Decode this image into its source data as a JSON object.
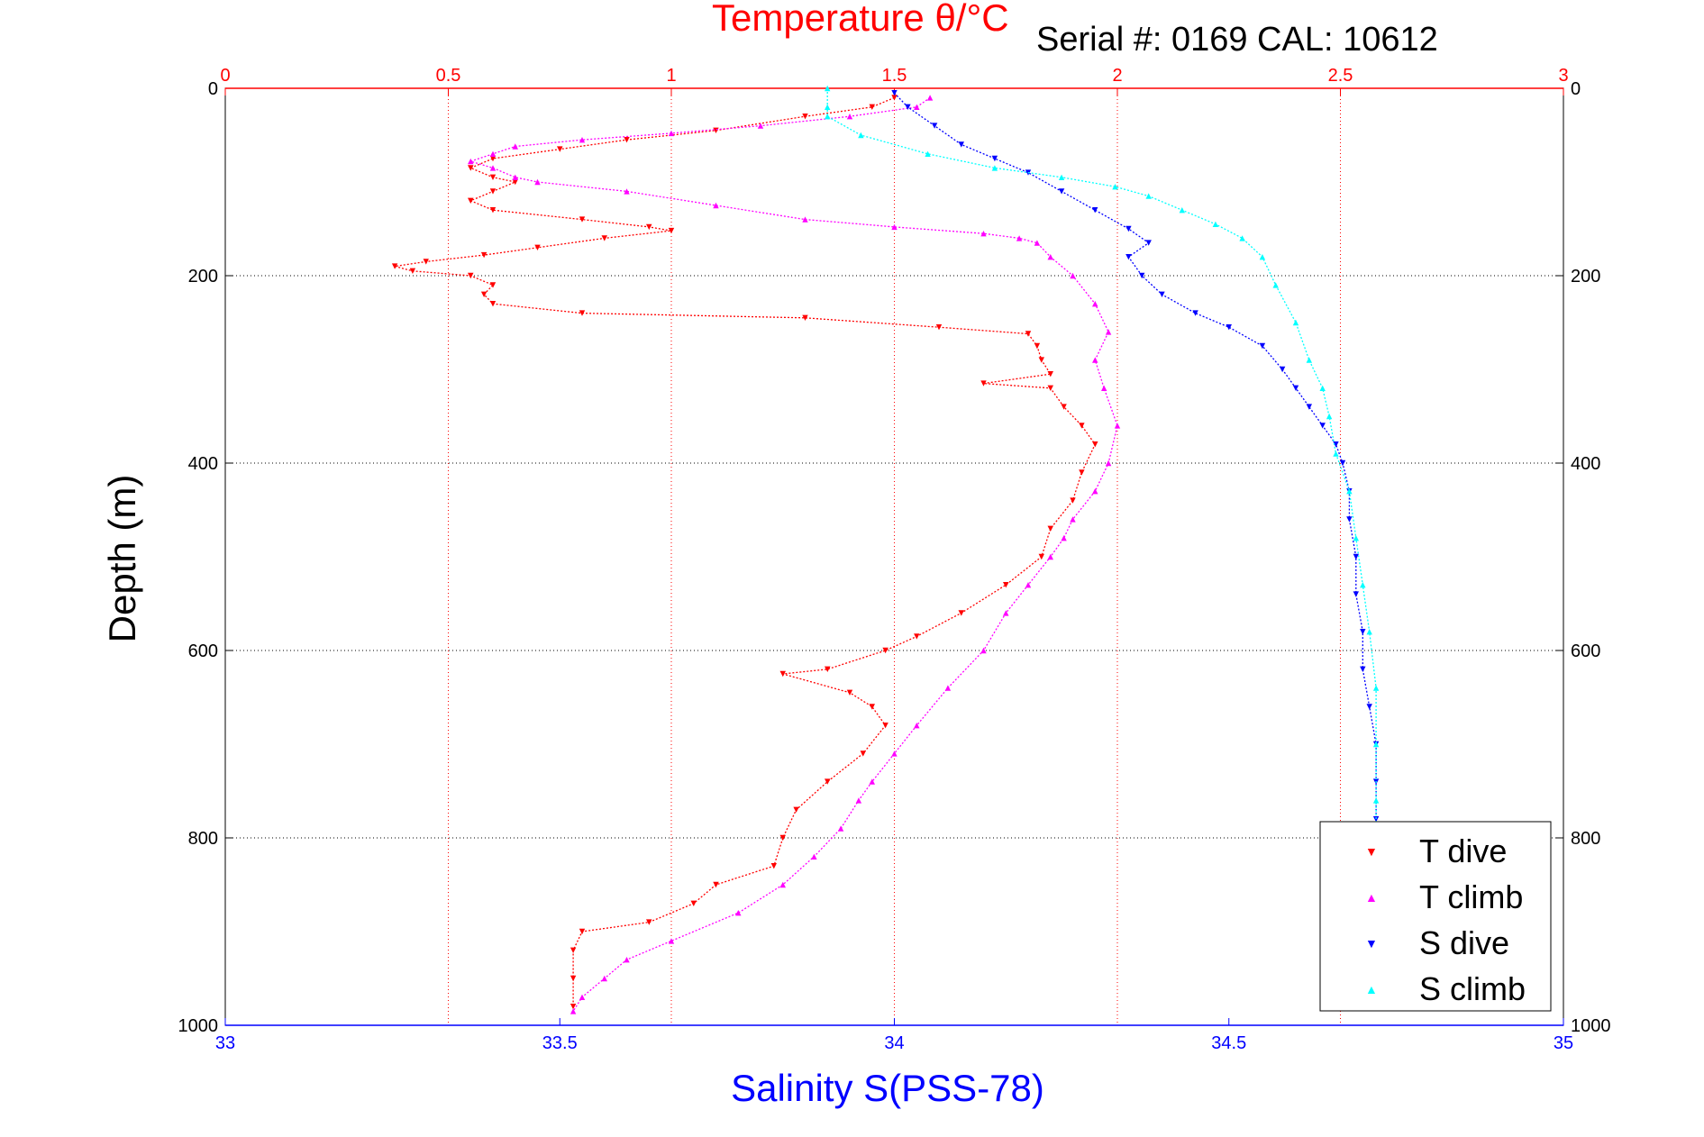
{
  "chart_data": {
    "type": "scatter",
    "title": "Temperature θ/°C",
    "subtitle": "Serial #: 0169 CAL: 10612",
    "ylabel": "Depth (m)",
    "xlabel_bottom": "Salinity S(PSS-78)",
    "xlabel_top": "Temperature θ/°C",
    "ylim": [
      0,
      1000
    ],
    "y_reversed": true,
    "xlim_top": [
      0,
      3
    ],
    "xlim_bottom": [
      33,
      35
    ],
    "yticks": [
      "0",
      "200",
      "400",
      "600",
      "800",
      "1000"
    ],
    "xticks_top": [
      "0",
      "0.5",
      "1",
      "1.5",
      "2",
      "2.5",
      "3"
    ],
    "xticks_bottom": [
      "33",
      "33.5",
      "34",
      "34.5",
      "35"
    ],
    "grid": true,
    "legend_position": "bottom-right",
    "colors": {
      "temperature_axis": "#ff0000",
      "salinity_axis": "#0000ff",
      "T dive": "#ff0000",
      "T climb": "#ff00ff",
      "S dive": "#0000ff",
      "S climb": "#00ffff"
    },
    "series": [
      {
        "name": "T dive",
        "axis": "temperature",
        "marker": "triangle-down",
        "points": [
          [
            1.5,
            10
          ],
          [
            1.45,
            20
          ],
          [
            1.3,
            30
          ],
          [
            1.1,
            45
          ],
          [
            0.9,
            55
          ],
          [
            0.75,
            65
          ],
          [
            0.6,
            75
          ],
          [
            0.55,
            85
          ],
          [
            0.6,
            95
          ],
          [
            0.65,
            100
          ],
          [
            0.6,
            110
          ],
          [
            0.55,
            120
          ],
          [
            0.6,
            130
          ],
          [
            0.8,
            140
          ],
          [
            0.95,
            148
          ],
          [
            1.0,
            152
          ],
          [
            0.85,
            160
          ],
          [
            0.7,
            170
          ],
          [
            0.58,
            178
          ],
          [
            0.45,
            185
          ],
          [
            0.38,
            190
          ],
          [
            0.42,
            195
          ],
          [
            0.55,
            200
          ],
          [
            0.6,
            210
          ],
          [
            0.58,
            220
          ],
          [
            0.6,
            230
          ],
          [
            0.8,
            240
          ],
          [
            1.3,
            245
          ],
          [
            1.6,
            255
          ],
          [
            1.8,
            262
          ],
          [
            1.82,
            275
          ],
          [
            1.83,
            290
          ],
          [
            1.85,
            305
          ],
          [
            1.7,
            315
          ],
          [
            1.85,
            320
          ],
          [
            1.88,
            340
          ],
          [
            1.92,
            360
          ],
          [
            1.95,
            380
          ],
          [
            1.92,
            410
          ],
          [
            1.9,
            440
          ],
          [
            1.85,
            470
          ],
          [
            1.83,
            500
          ],
          [
            1.75,
            530
          ],
          [
            1.65,
            560
          ],
          [
            1.55,
            585
          ],
          [
            1.48,
            600
          ],
          [
            1.35,
            620
          ],
          [
            1.25,
            625
          ],
          [
            1.4,
            645
          ],
          [
            1.45,
            660
          ],
          [
            1.48,
            680
          ],
          [
            1.43,
            710
          ],
          [
            1.35,
            740
          ],
          [
            1.28,
            770
          ],
          [
            1.25,
            800
          ],
          [
            1.23,
            830
          ],
          [
            1.1,
            850
          ],
          [
            1.05,
            870
          ],
          [
            0.95,
            890
          ],
          [
            0.8,
            900
          ],
          [
            0.78,
            920
          ],
          [
            0.78,
            950
          ],
          [
            0.78,
            980
          ]
        ]
      },
      {
        "name": "T climb",
        "axis": "temperature",
        "marker": "triangle-up",
        "points": [
          [
            1.58,
            10
          ],
          [
            1.55,
            20
          ],
          [
            1.4,
            30
          ],
          [
            1.2,
            40
          ],
          [
            1.0,
            48
          ],
          [
            0.8,
            55
          ],
          [
            0.65,
            62
          ],
          [
            0.6,
            70
          ],
          [
            0.55,
            78
          ],
          [
            0.6,
            85
          ],
          [
            0.65,
            95
          ],
          [
            0.7,
            100
          ],
          [
            0.9,
            110
          ],
          [
            1.1,
            125
          ],
          [
            1.3,
            140
          ],
          [
            1.5,
            148
          ],
          [
            1.7,
            155
          ],
          [
            1.78,
            160
          ],
          [
            1.82,
            165
          ],
          [
            1.85,
            180
          ],
          [
            1.9,
            200
          ],
          [
            1.95,
            230
          ],
          [
            1.98,
            260
          ],
          [
            1.95,
            290
          ],
          [
            1.97,
            320
          ],
          [
            2.0,
            360
          ],
          [
            1.98,
            400
          ],
          [
            1.95,
            430
          ],
          [
            1.9,
            460
          ],
          [
            1.88,
            480
          ],
          [
            1.85,
            500
          ],
          [
            1.8,
            530
          ],
          [
            1.75,
            560
          ],
          [
            1.7,
            600
          ],
          [
            1.62,
            640
          ],
          [
            1.55,
            680
          ],
          [
            1.5,
            710
          ],
          [
            1.45,
            740
          ],
          [
            1.42,
            760
          ],
          [
            1.38,
            790
          ],
          [
            1.32,
            820
          ],
          [
            1.25,
            850
          ],
          [
            1.15,
            880
          ],
          [
            1.0,
            910
          ],
          [
            0.9,
            930
          ],
          [
            0.85,
            950
          ],
          [
            0.8,
            970
          ],
          [
            0.78,
            985
          ]
        ]
      },
      {
        "name": "S dive",
        "axis": "salinity",
        "marker": "triangle-down",
        "points": [
          [
            34.0,
            5
          ],
          [
            34.02,
            20
          ],
          [
            34.06,
            40
          ],
          [
            34.1,
            60
          ],
          [
            34.15,
            75
          ],
          [
            34.2,
            90
          ],
          [
            34.25,
            110
          ],
          [
            34.3,
            130
          ],
          [
            34.35,
            150
          ],
          [
            34.38,
            165
          ],
          [
            34.35,
            180
          ],
          [
            34.37,
            200
          ],
          [
            34.4,
            220
          ],
          [
            34.45,
            240
          ],
          [
            34.5,
            255
          ],
          [
            34.55,
            275
          ],
          [
            34.58,
            300
          ],
          [
            34.6,
            320
          ],
          [
            34.62,
            340
          ],
          [
            34.64,
            360
          ],
          [
            34.66,
            380
          ],
          [
            34.67,
            400
          ],
          [
            34.68,
            430
          ],
          [
            34.68,
            460
          ],
          [
            34.69,
            500
          ],
          [
            34.69,
            540
          ],
          [
            34.7,
            580
          ],
          [
            34.7,
            620
          ],
          [
            34.71,
            660
          ],
          [
            34.72,
            700
          ],
          [
            34.72,
            740
          ],
          [
            34.72,
            780
          ]
        ]
      },
      {
        "name": "S climb",
        "axis": "salinity",
        "marker": "triangle-up",
        "points": [
          [
            33.9,
            0
          ],
          [
            33.9,
            20
          ],
          [
            33.9,
            30
          ],
          [
            33.95,
            50
          ],
          [
            34.05,
            70
          ],
          [
            34.15,
            85
          ],
          [
            34.25,
            95
          ],
          [
            34.33,
            105
          ],
          [
            34.38,
            115
          ],
          [
            34.43,
            130
          ],
          [
            34.48,
            145
          ],
          [
            34.52,
            160
          ],
          [
            34.55,
            180
          ],
          [
            34.57,
            210
          ],
          [
            34.6,
            250
          ],
          [
            34.62,
            290
          ],
          [
            34.64,
            320
          ],
          [
            34.65,
            350
          ],
          [
            34.66,
            390
          ],
          [
            34.68,
            430
          ],
          [
            34.69,
            480
          ],
          [
            34.7,
            530
          ],
          [
            34.71,
            580
          ],
          [
            34.72,
            640
          ],
          [
            34.72,
            700
          ],
          [
            34.72,
            760
          ],
          [
            34.72,
            800
          ]
        ]
      }
    ]
  }
}
